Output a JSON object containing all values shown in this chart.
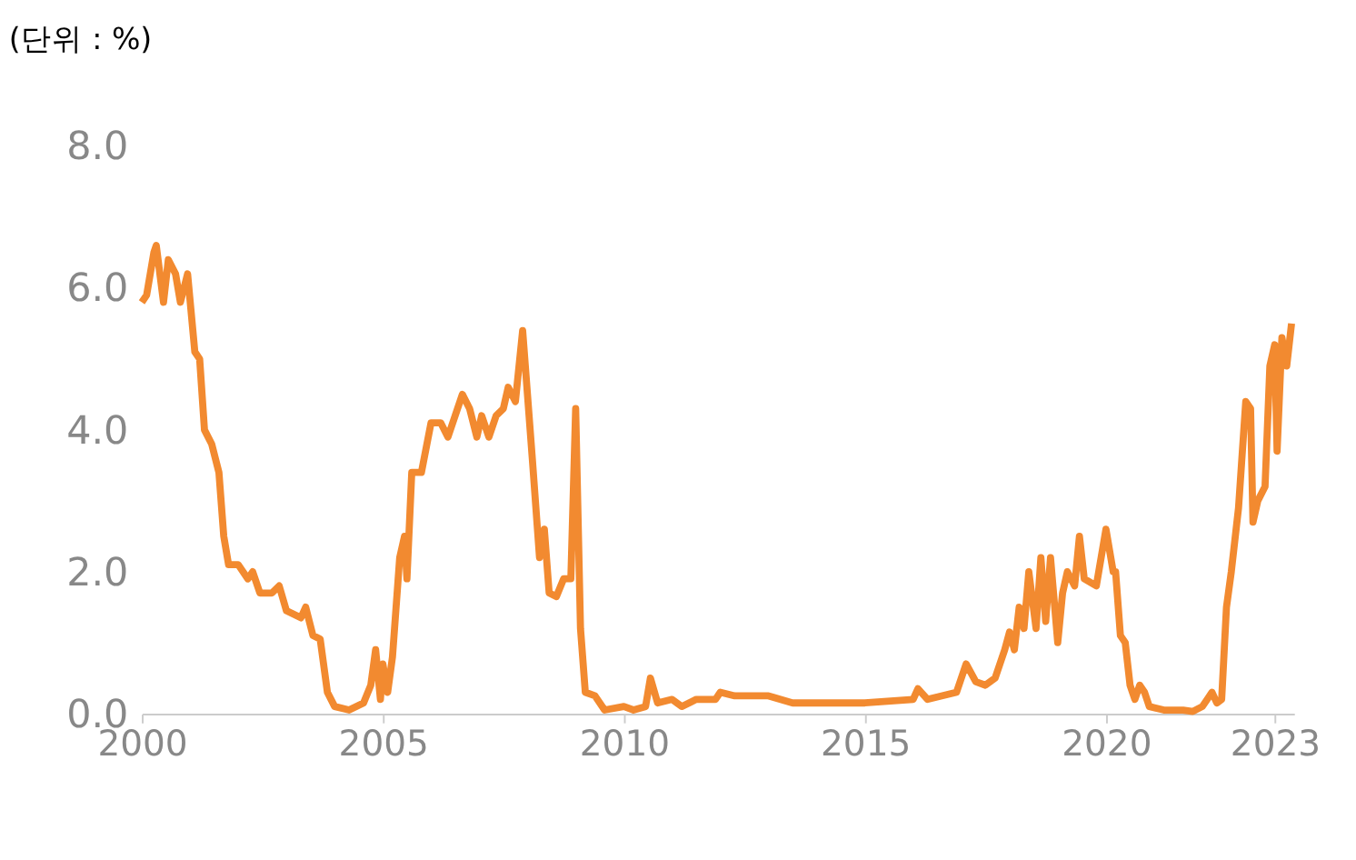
{
  "chart_data": {
    "type": "line",
    "title": "(단위 : %)",
    "series": [
      {
        "color": "#f28a30",
        "x": [
          2000.0,
          2000.1,
          2000.25,
          2000.3,
          2000.45,
          2000.55,
          2000.7,
          2000.8,
          2000.95,
          2001.1,
          2001.2,
          2001.3,
          2001.45,
          2001.6,
          2001.7,
          2001.8,
          2002.0,
          2002.2,
          2002.3,
          2002.45,
          2002.7,
          2002.85,
          2003.0,
          2003.3,
          2003.4,
          2003.55,
          2003.7,
          2003.85,
          2004.0,
          2004.3,
          2004.6,
          2004.75,
          2004.85,
          2004.95,
          2005.0,
          2005.1,
          2005.2,
          2005.35,
          2005.45,
          2005.5,
          2005.6,
          2005.8,
          2006.0,
          2006.2,
          2006.35,
          2006.5,
          2006.65,
          2006.8,
          2006.95,
          2007.05,
          2007.2,
          2007.35,
          2007.5,
          2007.6,
          2007.75,
          2007.9,
          2008.0,
          2008.1,
          2008.25,
          2008.35,
          2008.45,
          2008.6,
          2008.75,
          2008.9,
          2009.0,
          2009.1,
          2009.2,
          2009.4,
          2009.6,
          2010.0,
          2010.2,
          2010.45,
          2010.55,
          2010.7,
          2011.0,
          2011.2,
          2011.5,
          2011.9,
          2012.0,
          2012.3,
          2013.0,
          2013.5,
          2014.0,
          2015.0,
          2016.0,
          2016.1,
          2016.3,
          2016.9,
          2017.1,
          2017.3,
          2017.5,
          2017.7,
          2017.9,
          2018.0,
          2018.1,
          2018.2,
          2018.3,
          2018.4,
          2018.55,
          2018.65,
          2018.75,
          2018.85,
          2019.0,
          2019.1,
          2019.2,
          2019.35,
          2019.45,
          2019.55,
          2019.8,
          2020.0,
          2020.15,
          2020.2,
          2020.3,
          2020.4,
          2020.5,
          2020.6,
          2020.7,
          2020.8,
          2020.9,
          2021.2,
          2021.6,
          2021.8,
          2022.0,
          2022.1,
          2022.2,
          2022.3,
          2022.4,
          2022.5,
          2022.6,
          2022.75,
          2022.9,
          2023.0,
          2023.05,
          2023.15,
          2023.3,
          2023.4,
          2023.5,
          2023.55,
          2023.65,
          2023.75,
          2023.85
        ],
        "values": [
          5.8,
          5.9,
          6.5,
          6.6,
          5.8,
          6.4,
          6.2,
          5.8,
          6.2,
          5.1,
          5.0,
          4.0,
          3.8,
          3.4,
          2.5,
          2.1,
          2.1,
          1.9,
          2.0,
          1.7,
          1.7,
          1.8,
          1.45,
          1.35,
          1.5,
          1.1,
          1.05,
          0.3,
          0.1,
          0.05,
          0.15,
          0.4,
          0.9,
          0.2,
          0.7,
          0.3,
          0.8,
          2.2,
          2.5,
          1.9,
          3.4,
          3.4,
          4.1,
          4.1,
          3.9,
          4.2,
          4.5,
          4.3,
          3.9,
          4.2,
          3.9,
          4.2,
          4.3,
          4.6,
          4.4,
          5.4,
          4.5,
          3.6,
          2.2,
          2.6,
          1.7,
          1.65,
          1.9,
          1.9,
          4.3,
          1.2,
          0.3,
          0.25,
          0.05,
          0.1,
          0.05,
          0.1,
          0.5,
          0.15,
          0.2,
          0.1,
          0.2,
          0.2,
          0.3,
          0.25,
          0.25,
          0.15,
          0.15,
          0.15,
          0.2,
          0.35,
          0.2,
          0.3,
          0.7,
          0.45,
          0.4,
          0.5,
          0.9,
          1.15,
          0.9,
          1.5,
          1.2,
          2.0,
          1.2,
          2.2,
          1.3,
          2.2,
          1.0,
          1.7,
          2.0,
          1.8,
          2.5,
          1.9,
          1.8,
          2.6,
          2.0,
          2.0,
          1.1,
          1.0,
          0.4,
          0.2,
          0.4,
          0.3,
          0.1,
          0.05,
          0.05,
          0.03,
          0.1,
          0.2,
          0.3,
          0.15,
          0.2,
          1.5,
          2.0,
          2.9,
          4.4,
          4.3,
          2.7,
          3.0,
          3.2,
          4.9,
          5.2,
          3.7,
          5.3,
          4.9,
          5.5
        ]
      }
    ],
    "xlim": [
      2000,
      2023.9
    ],
    "xticks": [
      2000,
      2005,
      2010,
      2015,
      2020,
      {
        "value": 2023.5,
        "label": "2023"
      }
    ],
    "ylim": [
      0,
      8
    ],
    "yticks": [
      {
        "value": 0,
        "label": "0.0"
      },
      {
        "value": 2,
        "label": "2.0"
      },
      {
        "value": 4,
        "label": "4.0"
      },
      {
        "value": 6,
        "label": "6.0"
      },
      {
        "value": 8,
        "label": "8.0"
      }
    ],
    "grid": false,
    "marker": "none",
    "line_style": "solid"
  }
}
